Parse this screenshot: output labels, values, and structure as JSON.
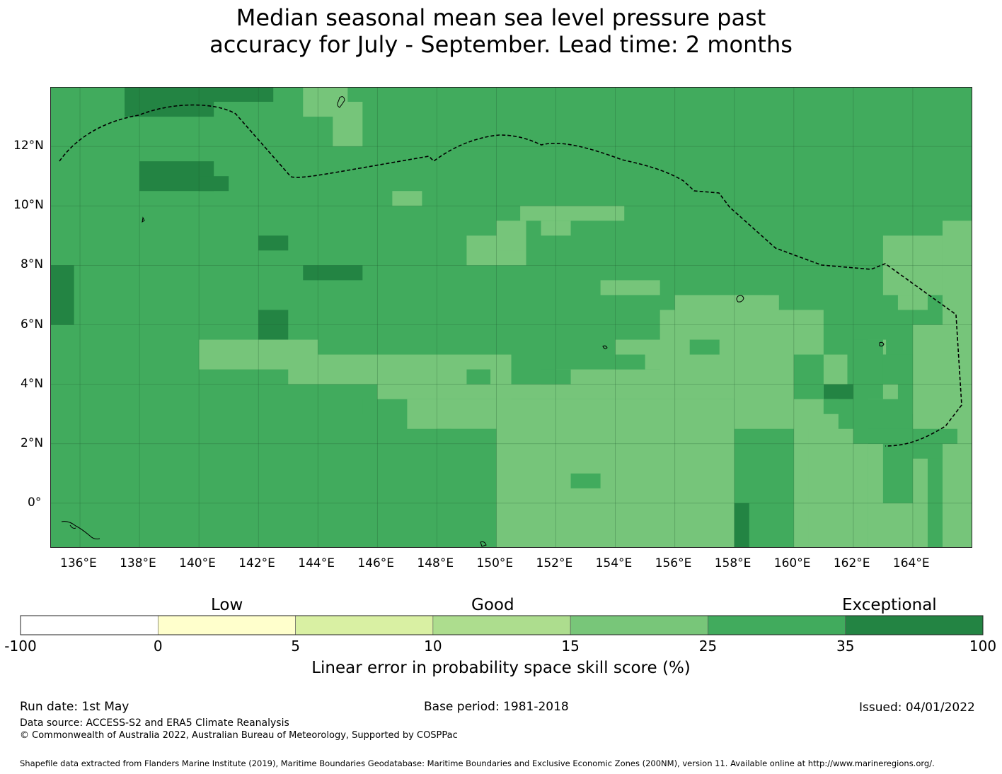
{
  "title": {
    "line1": "Median seasonal mean sea level pressure past",
    "line2": "accuracy for July - September. Lead time: 2 months"
  },
  "map": {
    "longitude_labels": [
      "136°E",
      "138°E",
      "140°E",
      "142°E",
      "144°E",
      "146°E",
      "148°E",
      "150°E",
      "152°E",
      "154°E",
      "156°E",
      "158°E",
      "160°E",
      "162°E",
      "164°E"
    ],
    "latitude_labels": [
      "12°N",
      "10°N",
      "8°N",
      "6°N",
      "4°N",
      "2°N",
      "0°"
    ],
    "category_colors": {
      "10-15": "#aede8f",
      "15-25": "#76c57a",
      "25-35": "#41ab5d",
      "35-100": "#238443"
    },
    "dominant_category": "25-35"
  },
  "colorbar": {
    "words": [
      "Low",
      "Good",
      "Exceptional"
    ],
    "ticks": [
      "-100",
      "0",
      "5",
      "10",
      "15",
      "25",
      "35",
      "100"
    ],
    "colors": [
      "#ffffff",
      "#ffffcc",
      "#d9f0a3",
      "#addd8e",
      "#78c679",
      "#41ab5d",
      "#238443"
    ],
    "label": "Linear error in probability space skill score (%)"
  },
  "footer": {
    "run_date": "Run date: 1st May",
    "base_period": "Base period: 1981-2018",
    "issued": "Issued: 04/01/2022",
    "data_source": "Data source: ACCESS-S2 and ERA5 Climate Reanalysis",
    "copyright": "© Commonwealth of Australia 2022, Australian Bureau of Meteorology, Supported by COSPPac",
    "shapefile": "Shapefile data extracted from Flanders Marine Institute (2019), Maritime Boundaries Geodatabase: Maritime Boundaries and Exclusive Economic Zones (200NM), version 11. Available online at http://www.marineregions.org/."
  }
}
